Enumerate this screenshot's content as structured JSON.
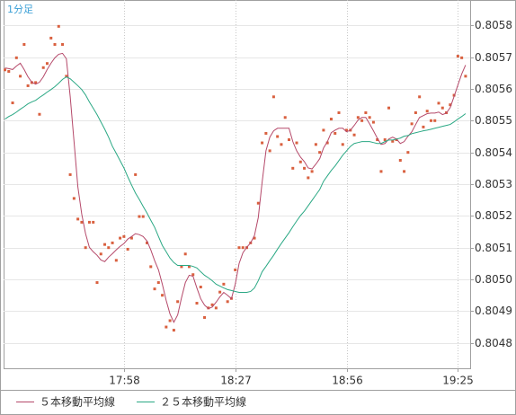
{
  "chart_data": {
    "type": "line",
    "title": "1分足",
    "categories": [
      null,
      null,
      null,
      null,
      null,
      null,
      null,
      null,
      null,
      null,
      null,
      null,
      null,
      null,
      null,
      null,
      null,
      null,
      null,
      null,
      null,
      null,
      null,
      null,
      null,
      null,
      null,
      null,
      null,
      null,
      null,
      "17:58",
      null,
      null,
      null,
      null,
      null,
      null,
      null,
      null,
      null,
      null,
      null,
      null,
      null,
      null,
      null,
      null,
      null,
      null,
      null,
      null,
      null,
      null,
      null,
      null,
      null,
      null,
      null,
      null,
      "18:27",
      null,
      null,
      null,
      null,
      null,
      null,
      null,
      null,
      null,
      null,
      null,
      null,
      null,
      null,
      null,
      null,
      null,
      null,
      null,
      null,
      null,
      null,
      null,
      null,
      null,
      null,
      null,
      null,
      "18:56",
      null,
      null,
      null,
      null,
      null,
      null,
      null,
      null,
      null,
      null,
      null,
      null,
      null,
      null,
      null,
      null,
      null,
      null,
      null,
      null,
      null,
      null,
      null,
      null,
      null,
      null,
      null,
      null,
      "19:25",
      null,
      null
    ],
    "series": [
      {
        "color": "#d9603f",
        "marker": "square",
        "values": [
          0.80566,
          0.805655,
          0.805556,
          0.805698,
          0.80564,
          0.80574,
          0.80561,
          0.80562,
          0.80562,
          0.80552,
          0.805667,
          0.80568,
          0.80576,
          0.80574,
          0.805797,
          0.80574,
          0.80564,
          0.80533,
          0.805255,
          0.80519,
          0.80518,
          0.8051,
          0.80518,
          0.80518,
          0.80499,
          0.80508,
          0.80511,
          0.8051,
          0.805115,
          0.80506,
          0.80513,
          0.805135,
          0.805095,
          0.80513,
          0.80533,
          0.805198,
          0.805198,
          0.805115,
          0.80504,
          0.80497,
          0.80499,
          0.80495,
          0.80485,
          0.80487,
          0.80484,
          0.80493,
          0.80504,
          0.80508,
          0.80504,
          0.805015,
          0.804925,
          0.804976,
          0.80488,
          0.80491,
          0.80492,
          0.80491,
          0.80496,
          0.804985,
          0.80493,
          0.80494,
          0.80503,
          0.8051,
          0.8051,
          0.8051,
          0.805115,
          0.80513,
          0.80524,
          0.80543,
          0.80546,
          0.805405,
          0.805575,
          0.80545,
          0.805425,
          0.80551,
          0.80544,
          0.80535,
          0.80543,
          0.80537,
          0.80535,
          0.80532,
          0.80534,
          0.805425,
          0.8054,
          0.80547,
          0.80543,
          0.805505,
          0.80546,
          0.805525,
          0.805425,
          0.80547,
          0.80547,
          0.805455,
          0.80551,
          0.8055,
          0.805525,
          0.80551,
          0.805495,
          0.80544,
          0.80534,
          0.80544,
          0.80554,
          0.805435,
          0.80544,
          0.805375,
          0.80534,
          0.8054,
          0.80549,
          0.805525,
          0.805575,
          0.80548,
          0.80553,
          0.8055,
          0.8055,
          0.805555,
          0.80554,
          0.805525,
          0.80555,
          0.80558,
          0.805703,
          0.805698,
          0.80564
        ]
      },
      {
        "name": "５本移動平均線",
        "color": "#b5496a",
        "values": [
          0.805666,
          0.805664,
          0.805661,
          0.805672,
          0.805681,
          0.805661,
          0.805638,
          0.805621,
          0.805615,
          0.805621,
          0.805638,
          0.805661,
          0.805681,
          0.805698,
          0.805709,
          0.805712,
          0.805695,
          0.805576,
          0.805434,
          0.805291,
          0.805206,
          0.805144,
          0.805101,
          0.805087,
          0.805076,
          0.805061,
          0.805056,
          0.80507,
          0.805081,
          0.805093,
          0.805104,
          0.805113,
          0.805127,
          0.805135,
          0.805144,
          0.805141,
          0.805135,
          0.805121,
          0.805093,
          0.805059,
          0.80503,
          0.804985,
          0.804934,
          0.804891,
          0.804865,
          0.804888,
          0.804942,
          0.80499,
          0.805013,
          0.80501,
          0.804973,
          0.804939,
          0.804919,
          0.804908,
          0.804913,
          0.804928,
          0.804945,
          0.804959,
          0.80495,
          0.804939,
          0.804985,
          0.80505,
          0.805084,
          0.805101,
          0.805115,
          0.805138,
          0.805195,
          0.805306,
          0.805405,
          0.805448,
          0.805468,
          0.805476,
          0.805476,
          0.805476,
          0.805476,
          0.805434,
          0.805405,
          0.805385,
          0.805371,
          0.805351,
          0.805348,
          0.805363,
          0.80538,
          0.805414,
          0.805434,
          0.805462,
          0.80547,
          0.805476,
          0.805476,
          0.805465,
          0.80547,
          0.805485,
          0.805502,
          0.80551,
          0.80551,
          0.80549,
          0.805468,
          0.805445,
          0.805425,
          0.805428,
          0.805442,
          0.805448,
          0.805442,
          0.805428,
          0.805434,
          0.805451,
          0.805465,
          0.805488,
          0.80551,
          0.805516,
          0.805522,
          0.805524,
          0.805524,
          0.805527,
          0.805519,
          0.805524,
          0.805541,
          0.805576,
          0.805612,
          0.805647,
          0.805675
        ]
      },
      {
        "name": "２５本移動平均線",
        "color": "#2aa884",
        "values": [
          0.805505,
          0.805513,
          0.805519,
          0.805527,
          0.805536,
          0.805544,
          0.805553,
          0.805559,
          0.805564,
          0.805573,
          0.805581,
          0.80559,
          0.805598,
          0.805607,
          0.805618,
          0.80563,
          0.805638,
          0.805632,
          0.805621,
          0.80561,
          0.805598,
          0.805581,
          0.805559,
          0.805539,
          0.805519,
          0.805496,
          0.805473,
          0.805448,
          0.805419,
          0.805397,
          0.805374,
          0.805351,
          0.805323,
          0.805297,
          0.805272,
          0.805252,
          0.80523,
          0.805209,
          0.805186,
          0.805164,
          0.805135,
          0.805107,
          0.805087,
          0.805067,
          0.805053,
          0.805044,
          0.805044,
          0.805044,
          0.805044,
          0.805041,
          0.805036,
          0.805024,
          0.805013,
          0.805005,
          0.804996,
          0.804985,
          0.804979,
          0.804973,
          0.804968,
          0.804965,
          0.804962,
          0.804959,
          0.804959,
          0.804959,
          0.804962,
          0.804973,
          0.804996,
          0.805024,
          0.805041,
          0.805059,
          0.805076,
          0.805095,
          0.805113,
          0.80513,
          0.805147,
          0.805166,
          0.805184,
          0.805201,
          0.805215,
          0.805232,
          0.805249,
          0.805266,
          0.805283,
          0.805309,
          0.805326,
          0.805343,
          0.805357,
          0.805374,
          0.805391,
          0.805405,
          0.805419,
          0.805428,
          0.805431,
          0.805434,
          0.805434,
          0.805434,
          0.805431,
          0.805428,
          0.805428,
          0.805434,
          0.805439,
          0.805439,
          0.805442,
          0.805445,
          0.805451,
          0.805453,
          0.805459,
          0.805462,
          0.805465,
          0.805468,
          0.80547,
          0.805473,
          0.805476,
          0.805479,
          0.805482,
          0.805485,
          0.805488,
          0.805496,
          0.805505,
          0.805513,
          0.805522
        ]
      }
    ],
    "ylim": [
      0.80472,
      0.80588
    ],
    "yticks": [
      0.8048,
      0.8049,
      {
        "value": 0.805,
        "label": "0.8050"
      },
      0.8051,
      0.8052,
      0.8053,
      0.8054,
      0.8055,
      0.8056,
      0.8057,
      0.8058
    ],
    "grid": true
  }
}
